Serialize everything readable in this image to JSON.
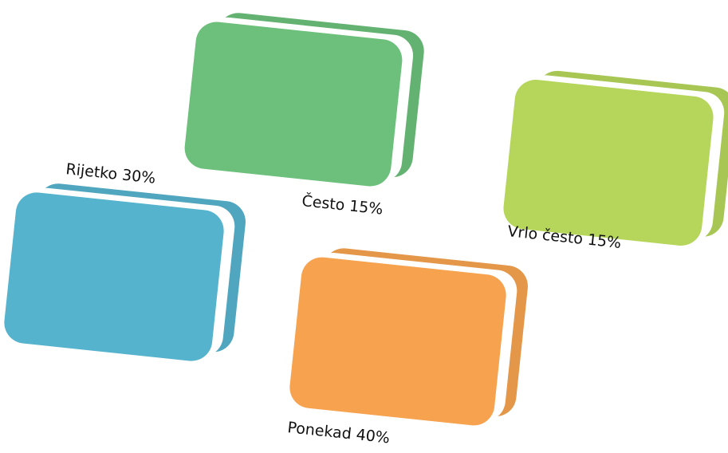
{
  "nodes": [
    {
      "label": "Rijetko 30%",
      "color": "#55b3cd"
    },
    {
      "label": "Često 15%",
      "color": "#6cc07b"
    },
    {
      "label": "Vrlo često 15%",
      "color": "#b5d65a"
    },
    {
      "label": "Ponekad 40%",
      "color": "#f6a24f"
    }
  ]
}
